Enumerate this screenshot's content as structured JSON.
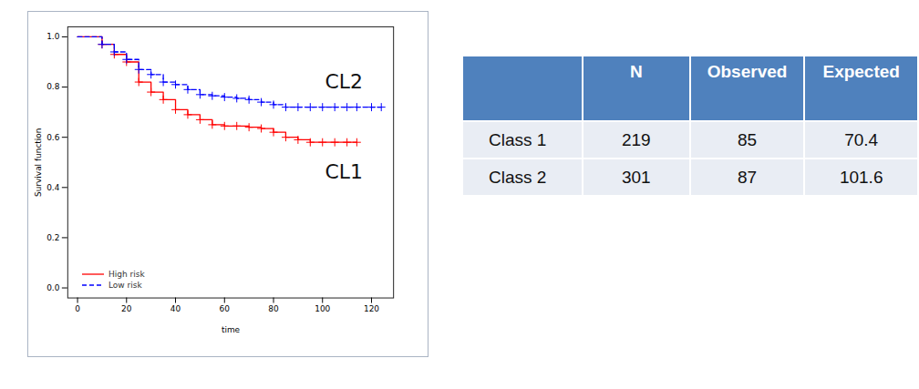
{
  "chart_data": {
    "type": "line",
    "x_label": "time",
    "y_label": "Survival function",
    "x": [
      0,
      10,
      15,
      20,
      25,
      30,
      35,
      40,
      45,
      50,
      55,
      60,
      65,
      70,
      75,
      80,
      85,
      90,
      95,
      100,
      105,
      110,
      114,
      120,
      124
    ],
    "series": [
      {
        "name": "High risk",
        "color": "#ff0000",
        "line_style": "solid",
        "marker": "plus",
        "values": [
          1.0,
          0.97,
          0.93,
          0.9,
          0.82,
          0.78,
          0.75,
          0.71,
          0.69,
          0.67,
          0.65,
          0.645,
          0.645,
          0.64,
          0.635,
          0.62,
          0.6,
          0.59,
          0.58,
          0.58,
          0.58,
          0.58,
          0.58,
          null,
          null
        ]
      },
      {
        "name": "Low risk",
        "color": "#0000ff",
        "line_style": "dashed",
        "marker": "plus",
        "values": [
          1.0,
          0.97,
          0.94,
          0.91,
          0.87,
          0.85,
          0.82,
          0.81,
          0.79,
          0.77,
          0.765,
          0.76,
          0.755,
          0.75,
          0.74,
          0.73,
          0.72,
          0.72,
          0.72,
          0.72,
          0.72,
          0.72,
          0.72,
          0.72,
          0.72
        ]
      }
    ],
    "xlim": [
      -4,
      129
    ],
    "ylim": [
      -0.04,
      1.04
    ],
    "xticks": [
      0,
      20,
      40,
      60,
      80,
      100,
      120
    ],
    "yticks": [
      {
        "value": 0,
        "label": "0.0"
      },
      {
        "value": 0.2,
        "label": "0.2"
      },
      {
        "value": 0.4,
        "label": "0.4"
      },
      {
        "value": 0.6,
        "label": "0.6"
      },
      {
        "value": 0.8,
        "label": "0.8"
      },
      {
        "value": 1,
        "label": "1.0"
      }
    ],
    "annotations": [
      {
        "text": "CL2",
        "x": 101,
        "y": 0.82
      },
      {
        "text": "CL1",
        "x": 101,
        "y": 0.46
      }
    ],
    "legend": "bottom-left",
    "grid": false
  },
  "table": {
    "columns": [
      "N",
      "Observed",
      "Expected"
    ],
    "rows": [
      [
        "Class 1",
        219,
        85,
        70.4
      ],
      [
        "Class 2",
        301,
        87,
        101.6
      ]
    ]
  }
}
